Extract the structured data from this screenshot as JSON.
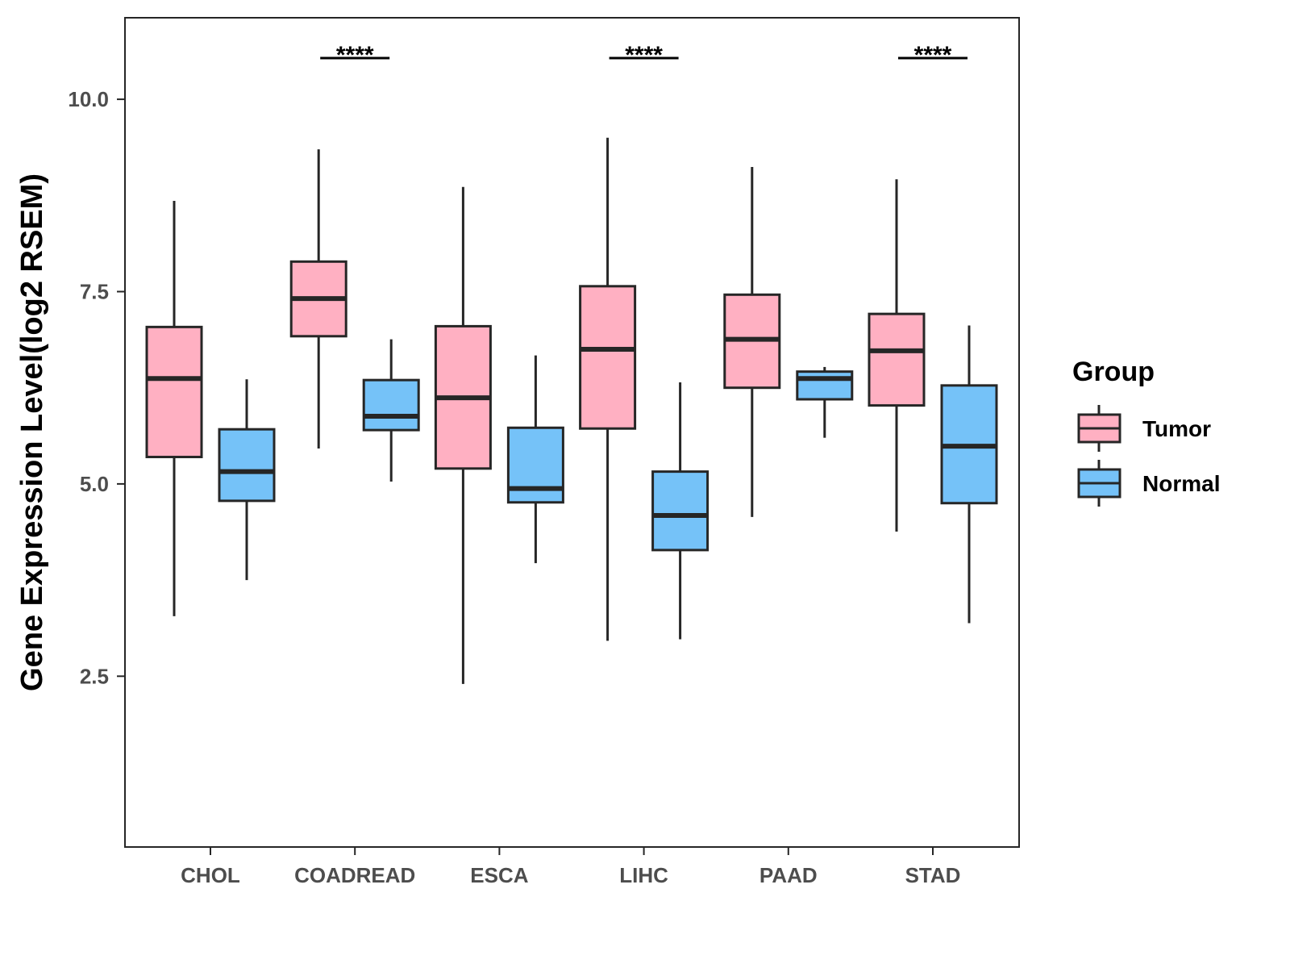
{
  "chart_data": {
    "type": "boxplot",
    "title": "",
    "xlabel": "",
    "ylabel": "Gene Expression Level(log2 RSEM)",
    "ylim": [
      0.28,
      11.06
    ],
    "yticks": [
      2.5,
      5.0,
      7.5,
      10.0
    ],
    "ytick_labels": [
      "2.5",
      "5.0",
      "7.5",
      "10.0"
    ],
    "grid": false,
    "categories": [
      "CHOL",
      "COADREAD",
      "ESCA",
      "LIHC",
      "PAAD",
      "STAD"
    ],
    "legend": {
      "title": "Group",
      "position": "right",
      "entries": [
        "Tumor",
        "Normal"
      ]
    },
    "colors": {
      "Tumor": "#FFB0C2",
      "Normal": "#75C2F8",
      "outline": "#262626"
    },
    "series": [
      {
        "name": "Tumor",
        "boxes": [
          {
            "min": 3.28,
            "q1": 5.35,
            "median": 6.37,
            "q3": 7.04,
            "max": 8.68
          },
          {
            "min": 5.46,
            "q1": 6.92,
            "median": 7.41,
            "q3": 7.89,
            "max": 9.35
          },
          {
            "min": 2.4,
            "q1": 5.2,
            "median": 6.12,
            "q3": 7.05,
            "max": 8.86
          },
          {
            "min": 2.96,
            "q1": 5.72,
            "median": 6.75,
            "q3": 7.57,
            "max": 9.5
          },
          {
            "min": 4.57,
            "q1": 6.25,
            "median": 6.88,
            "q3": 7.46,
            "max": 9.12
          },
          {
            "min": 4.38,
            "q1": 6.02,
            "median": 6.73,
            "q3": 7.21,
            "max": 8.96
          }
        ]
      },
      {
        "name": "Normal",
        "boxes": [
          {
            "min": 3.75,
            "q1": 4.78,
            "median": 5.16,
            "q3": 5.71,
            "max": 6.36
          },
          {
            "min": 5.03,
            "q1": 5.7,
            "median": 5.88,
            "q3": 6.35,
            "max": 6.88
          },
          {
            "min": 3.97,
            "q1": 4.76,
            "median": 4.94,
            "q3": 5.73,
            "max": 6.67
          },
          {
            "min": 2.98,
            "q1": 4.14,
            "median": 4.59,
            "q3": 5.16,
            "max": 6.32
          },
          {
            "min": 5.6,
            "q1": 6.1,
            "median": 6.37,
            "q3": 6.46,
            "max": 6.52
          },
          {
            "min": 3.19,
            "q1": 4.75,
            "median": 5.49,
            "q3": 6.28,
            "max": 7.06
          }
        ]
      }
    ],
    "annotations": [
      {
        "category": "COADREAD",
        "text": "****"
      },
      {
        "category": "LIHC",
        "text": "****"
      },
      {
        "category": "STAD",
        "text": "****"
      }
    ]
  }
}
